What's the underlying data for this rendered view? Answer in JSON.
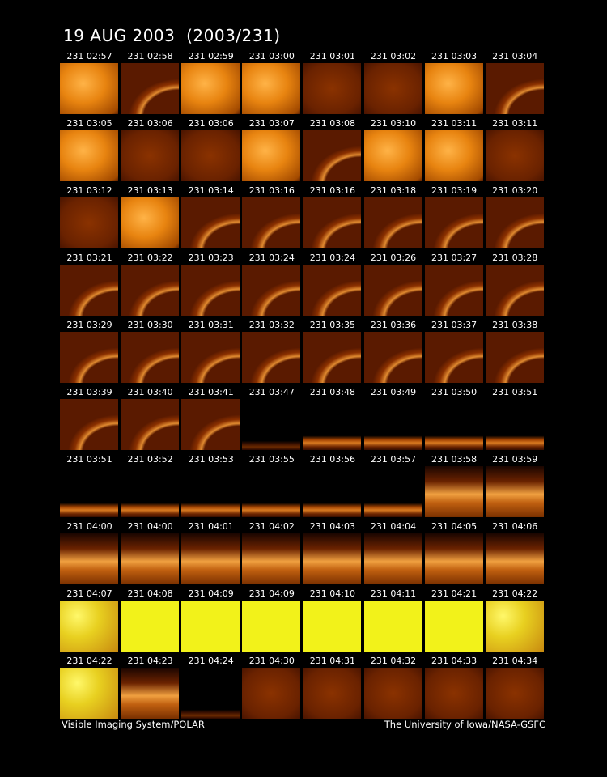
{
  "title": "19 AUG 2003  (2003/231)",
  "frames": [
    [
      "231 02:57",
      "231 02:58",
      "231 02:59",
      "231 03:00",
      "231 03:01",
      "231 03:02",
      "231 03:03",
      "231 03:04"
    ],
    [
      "231 03:05",
      "231 03:06",
      "231 03:06",
      "231 03:07",
      "231 03:08",
      "231 03:10",
      "231 03:11",
      "231 03:11"
    ],
    [
      "231 03:12",
      "231 03:13",
      "231 03:14",
      "231 03:16",
      "231 03:16",
      "231 03:18",
      "231 03:19",
      "231 03:20"
    ],
    [
      "231 03:21",
      "231 03:22",
      "231 03:23",
      "231 03:24",
      "231 03:24",
      "231 03:26",
      "231 03:27",
      "231 03:28"
    ],
    [
      "231 03:29",
      "231 03:30",
      "231 03:31",
      "231 03:32",
      "231 03:35",
      "231 03:36",
      "231 03:37",
      "231 03:38"
    ],
    [
      "231 03:39",
      "231 03:40",
      "231 03:41",
      "231 03:47",
      "231 03:48",
      "231 03:49",
      "231 03:50",
      "231 03:51"
    ],
    [
      "231 03:51",
      "231 03:52",
      "231 03:53",
      "231 03:55",
      "231 03:56",
      "231 03:57",
      "231 03:58",
      "231 03:59"
    ],
    [
      "231 04:00",
      "231 04:00",
      "231 04:01",
      "231 04:02",
      "231 04:03",
      "231 04:04",
      "231 04:05",
      "231 04:06"
    ],
    [
      "231 04:07",
      "231 04:08",
      "231 04:09",
      "231 04:09",
      "231 04:10",
      "231 04:11",
      "231 04:21",
      "231 04:22"
    ],
    [
      "231 04:22",
      "231 04:23",
      "231 04:24",
      "231 04:30",
      "231 04:31",
      "231 04:32",
      "231 04:33",
      "231 04:34"
    ]
  ],
  "footer": {
    "left": "Visible Imaging System/POLAR",
    "right": "The University of Iowa/NASA-GSFC"
  }
}
